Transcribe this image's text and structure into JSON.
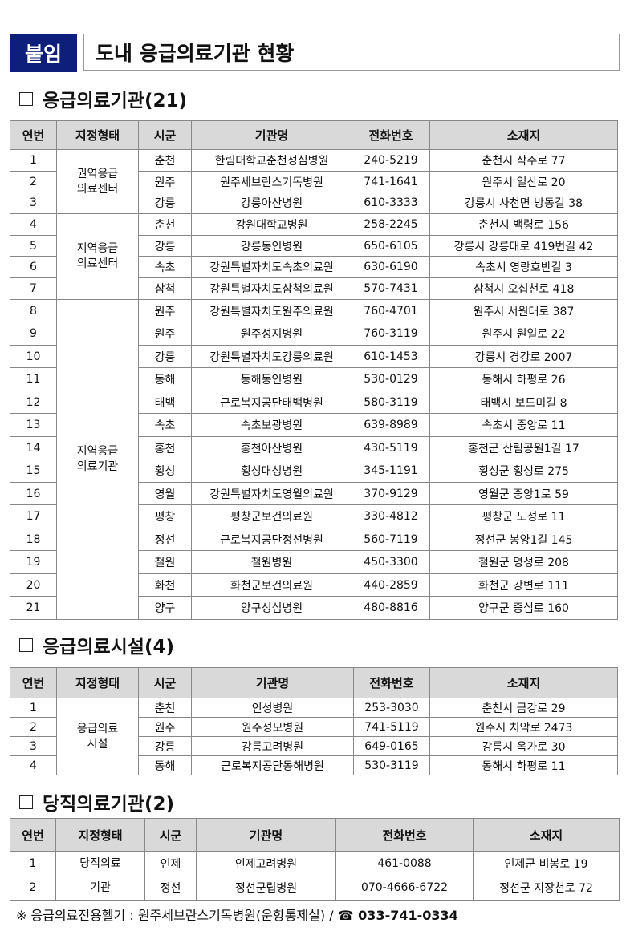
{
  "header": {
    "badge": "붙임",
    "title": "도내 응급의료기관 현황"
  },
  "columns": [
    "연번",
    "지정형태",
    "시군",
    "기관명",
    "전화번호",
    "소재지"
  ],
  "sections": [
    {
      "title": "응급의료기관(21)",
      "groups": [
        {
          "type": "권역응급\n의료센터",
          "rows": [
            [
              "1",
              "춘천",
              "한림대학교춘천성심병원",
              "240-5219",
              "춘천시 삭주로 77"
            ],
            [
              "2",
              "원주",
              "원주세브란스기독병원",
              "741-1641",
              "원주시 일산로 20"
            ],
            [
              "3",
              "강릉",
              "강릉아산병원",
              "610-3333",
              "강릉시 사천면 방동길 38"
            ]
          ]
        },
        {
          "type": "지역응급\n의료센터",
          "rows": [
            [
              "4",
              "춘천",
              "강원대학교병원",
              "258-2245",
              "춘천시 백령로 156"
            ],
            [
              "5",
              "강릉",
              "강릉동인병원",
              "650-6105",
              "강릉시 강릉대로 419번길 42"
            ],
            [
              "6",
              "속초",
              "강원특별자치도속초의료원",
              "630-6190",
              "속초시 영랑호반길 3"
            ],
            [
              "7",
              "삼척",
              "강원특별자치도삼척의료원",
              "570-7431",
              "삼척시 오십천로 418"
            ]
          ]
        },
        {
          "type": "지역응급\n의료기관",
          "rows": [
            [
              "8",
              "원주",
              "강원특별자치도원주의료원",
              "760-4701",
              "원주시 서원대로 387"
            ],
            [
              "9",
              "원주",
              "원주성지병원",
              "760-3119",
              "원주시 원일로 22"
            ],
            [
              "10",
              "강릉",
              "강원특별자치도강릉의료원",
              "610-1453",
              "강릉시 경강로 2007"
            ],
            [
              "11",
              "동해",
              "동해동인병원",
              "530-0129",
              "동해시 하평로 26"
            ],
            [
              "12",
              "태백",
              "근로복지공단태백병원",
              "580-3119",
              "태백시 보드미길 8"
            ],
            [
              "13",
              "속초",
              "속초보광병원",
              "639-8989",
              "속초시 중앙로 11"
            ],
            [
              "14",
              "홍천",
              "홍천아산병원",
              "430-5119",
              "홍천군 산림공원1길 17"
            ],
            [
              "15",
              "횡성",
              "횡성대성병원",
              "345-1191",
              "횡성군 횡성로 275"
            ],
            [
              "16",
              "영월",
              "강원특별자치도영월의료원",
              "370-9129",
              "영월군 중앙1로 59"
            ],
            [
              "17",
              "평창",
              "평창군보건의료원",
              "330-4812",
              "평창군 노성로 11"
            ],
            [
              "18",
              "정선",
              "근로복지공단정선병원",
              "560-7119",
              "정선군 봉양1길 145"
            ],
            [
              "19",
              "철원",
              "철원병원",
              "450-3300",
              "철원군 명성로 208"
            ],
            [
              "20",
              "화천",
              "화천군보건의료원",
              "440-2859",
              "화천군 강변로 111"
            ],
            [
              "21",
              "양구",
              "양구성심병원",
              "480-8816",
              "양구군 중심로 160"
            ]
          ]
        }
      ]
    },
    {
      "title": "응급의료시설(4)",
      "groups": [
        {
          "type": "응급의료\n시설",
          "rows": [
            [
              "1",
              "춘천",
              "인성병원",
              "253-3030",
              "춘천시 금강로 29"
            ],
            [
              "2",
              "원주",
              "원주성모병원",
              "741-5119",
              "원주시 치악로 2473"
            ],
            [
              "3",
              "강릉",
              "강릉고려병원",
              "649-0165",
              "강릉시 옥가로 30"
            ],
            [
              "4",
              "동해",
              "근로복지공단동해병원",
              "530-3119",
              "동해시 하평로 11"
            ]
          ]
        }
      ]
    },
    {
      "title": "당직의료기관(2)",
      "groups": [
        {
          "type": "당직의료\n기관",
          "rows": [
            [
              "1",
              "인제",
              "인제고려병원",
              "461-0088",
              "인제군 비봉로 19"
            ],
            [
              "2",
              "정선",
              "정선군립병원",
              "070-4666-6722",
              "정선군 지장천로 72"
            ]
          ]
        }
      ]
    }
  ],
  "footnote": {
    "prefix": "※ 응급의료전용헬기 : 원주세브란스기독병원(운항통제실) / ",
    "icon": "telephone-icon",
    "phone": "☎ 033-741-0334"
  }
}
